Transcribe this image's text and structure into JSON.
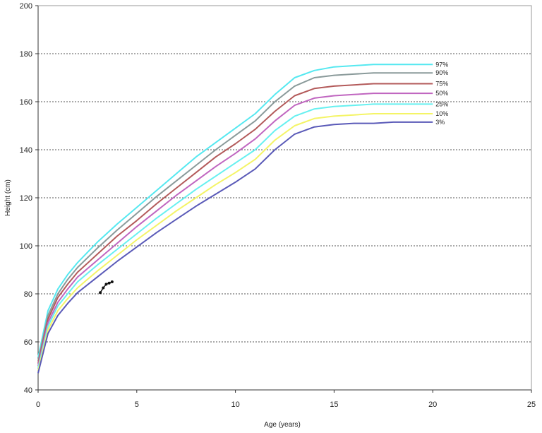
{
  "chart_data": {
    "type": "line",
    "title": "",
    "xlabel": "Age (years)",
    "ylabel": "Height (cm)",
    "xlim": [
      0,
      25
    ],
    "ylim": [
      40,
      200
    ],
    "xticks": [
      0,
      5,
      10,
      15,
      20,
      25
    ],
    "yticks": [
      40,
      60,
      80,
      100,
      120,
      140,
      160,
      180,
      200
    ],
    "grid": "horizontal dotted",
    "colors": {
      "p97": "#55e8f0",
      "p90": "#8a9a9a",
      "p75": "#b35a5a",
      "p50": "#c066c0",
      "p25": "#66f0f0",
      "p10": "#f4f466",
      "p3": "#5a5ab8",
      "patient": "#111111"
    },
    "x": [
      0,
      0.5,
      1,
      1.5,
      2,
      3,
      4,
      5,
      6,
      7,
      8,
      9,
      10,
      11,
      12,
      13,
      14,
      15,
      16,
      17,
      18,
      19,
      20
    ],
    "series": [
      {
        "name": "97%",
        "color_key": "p97",
        "values": [
          53.5,
          73,
          82,
          88,
          93,
          101.5,
          109,
          116,
          123,
          130,
          137,
          143,
          149,
          155,
          163,
          170,
          173,
          174.5,
          175,
          175.5,
          175.5,
          175.5,
          175.5
        ]
      },
      {
        "name": "90%",
        "color_key": "p90",
        "values": [
          52,
          71,
          80,
          86,
          91,
          99,
          106.5,
          113.5,
          120.5,
          127,
          133.5,
          140,
          146,
          152,
          160,
          166.5,
          170,
          171,
          171.5,
          172,
          172,
          172,
          172
        ]
      },
      {
        "name": "75%",
        "color_key": "p75",
        "values": [
          51,
          69.5,
          78.5,
          84,
          89,
          96.5,
          104,
          110.5,
          117.5,
          124,
          130.5,
          137,
          142.5,
          148.5,
          156,
          162.5,
          165.5,
          166.5,
          167,
          167.5,
          167.5,
          167.5,
          167.5
        ]
      },
      {
        "name": "50%",
        "color_key": "p50",
        "values": [
          50,
          68,
          76.5,
          82,
          87,
          94,
          101,
          108,
          114.5,
          121,
          127,
          133,
          138.5,
          144.5,
          152,
          158.5,
          161.5,
          162.5,
          163,
          163.5,
          163.5,
          163.5,
          163.5
        ]
      },
      {
        "name": "25%",
        "color_key": "p25",
        "values": [
          49,
          66.5,
          75,
          80,
          85,
          92,
          98.5,
          105,
          111.5,
          117.5,
          123.5,
          129,
          134.5,
          140,
          148,
          154,
          157,
          158,
          158.5,
          159,
          159,
          159,
          159
        ]
      },
      {
        "name": "10%",
        "color_key": "p10",
        "values": [
          48,
          65,
          73,
          78,
          82.5,
          89.5,
          96,
          102.5,
          108.5,
          114.5,
          120,
          125.5,
          130.5,
          136,
          144,
          150,
          153,
          154,
          154.5,
          155,
          155,
          155,
          155
        ]
      },
      {
        "name": "3%",
        "color_key": "p3",
        "values": [
          47,
          63.5,
          71,
          76,
          80.5,
          87,
          93.5,
          99.5,
          105.5,
          111,
          116.5,
          121.5,
          126.5,
          132,
          140,
          146.5,
          149.5,
          150.5,
          151,
          151,
          151.5,
          151.5,
          151.5
        ]
      }
    ],
    "patient_points": {
      "x": [
        3.15,
        3.3,
        3.45,
        3.6,
        3.75
      ],
      "y": [
        80.5,
        82.5,
        84,
        84.5,
        85
      ]
    }
  }
}
